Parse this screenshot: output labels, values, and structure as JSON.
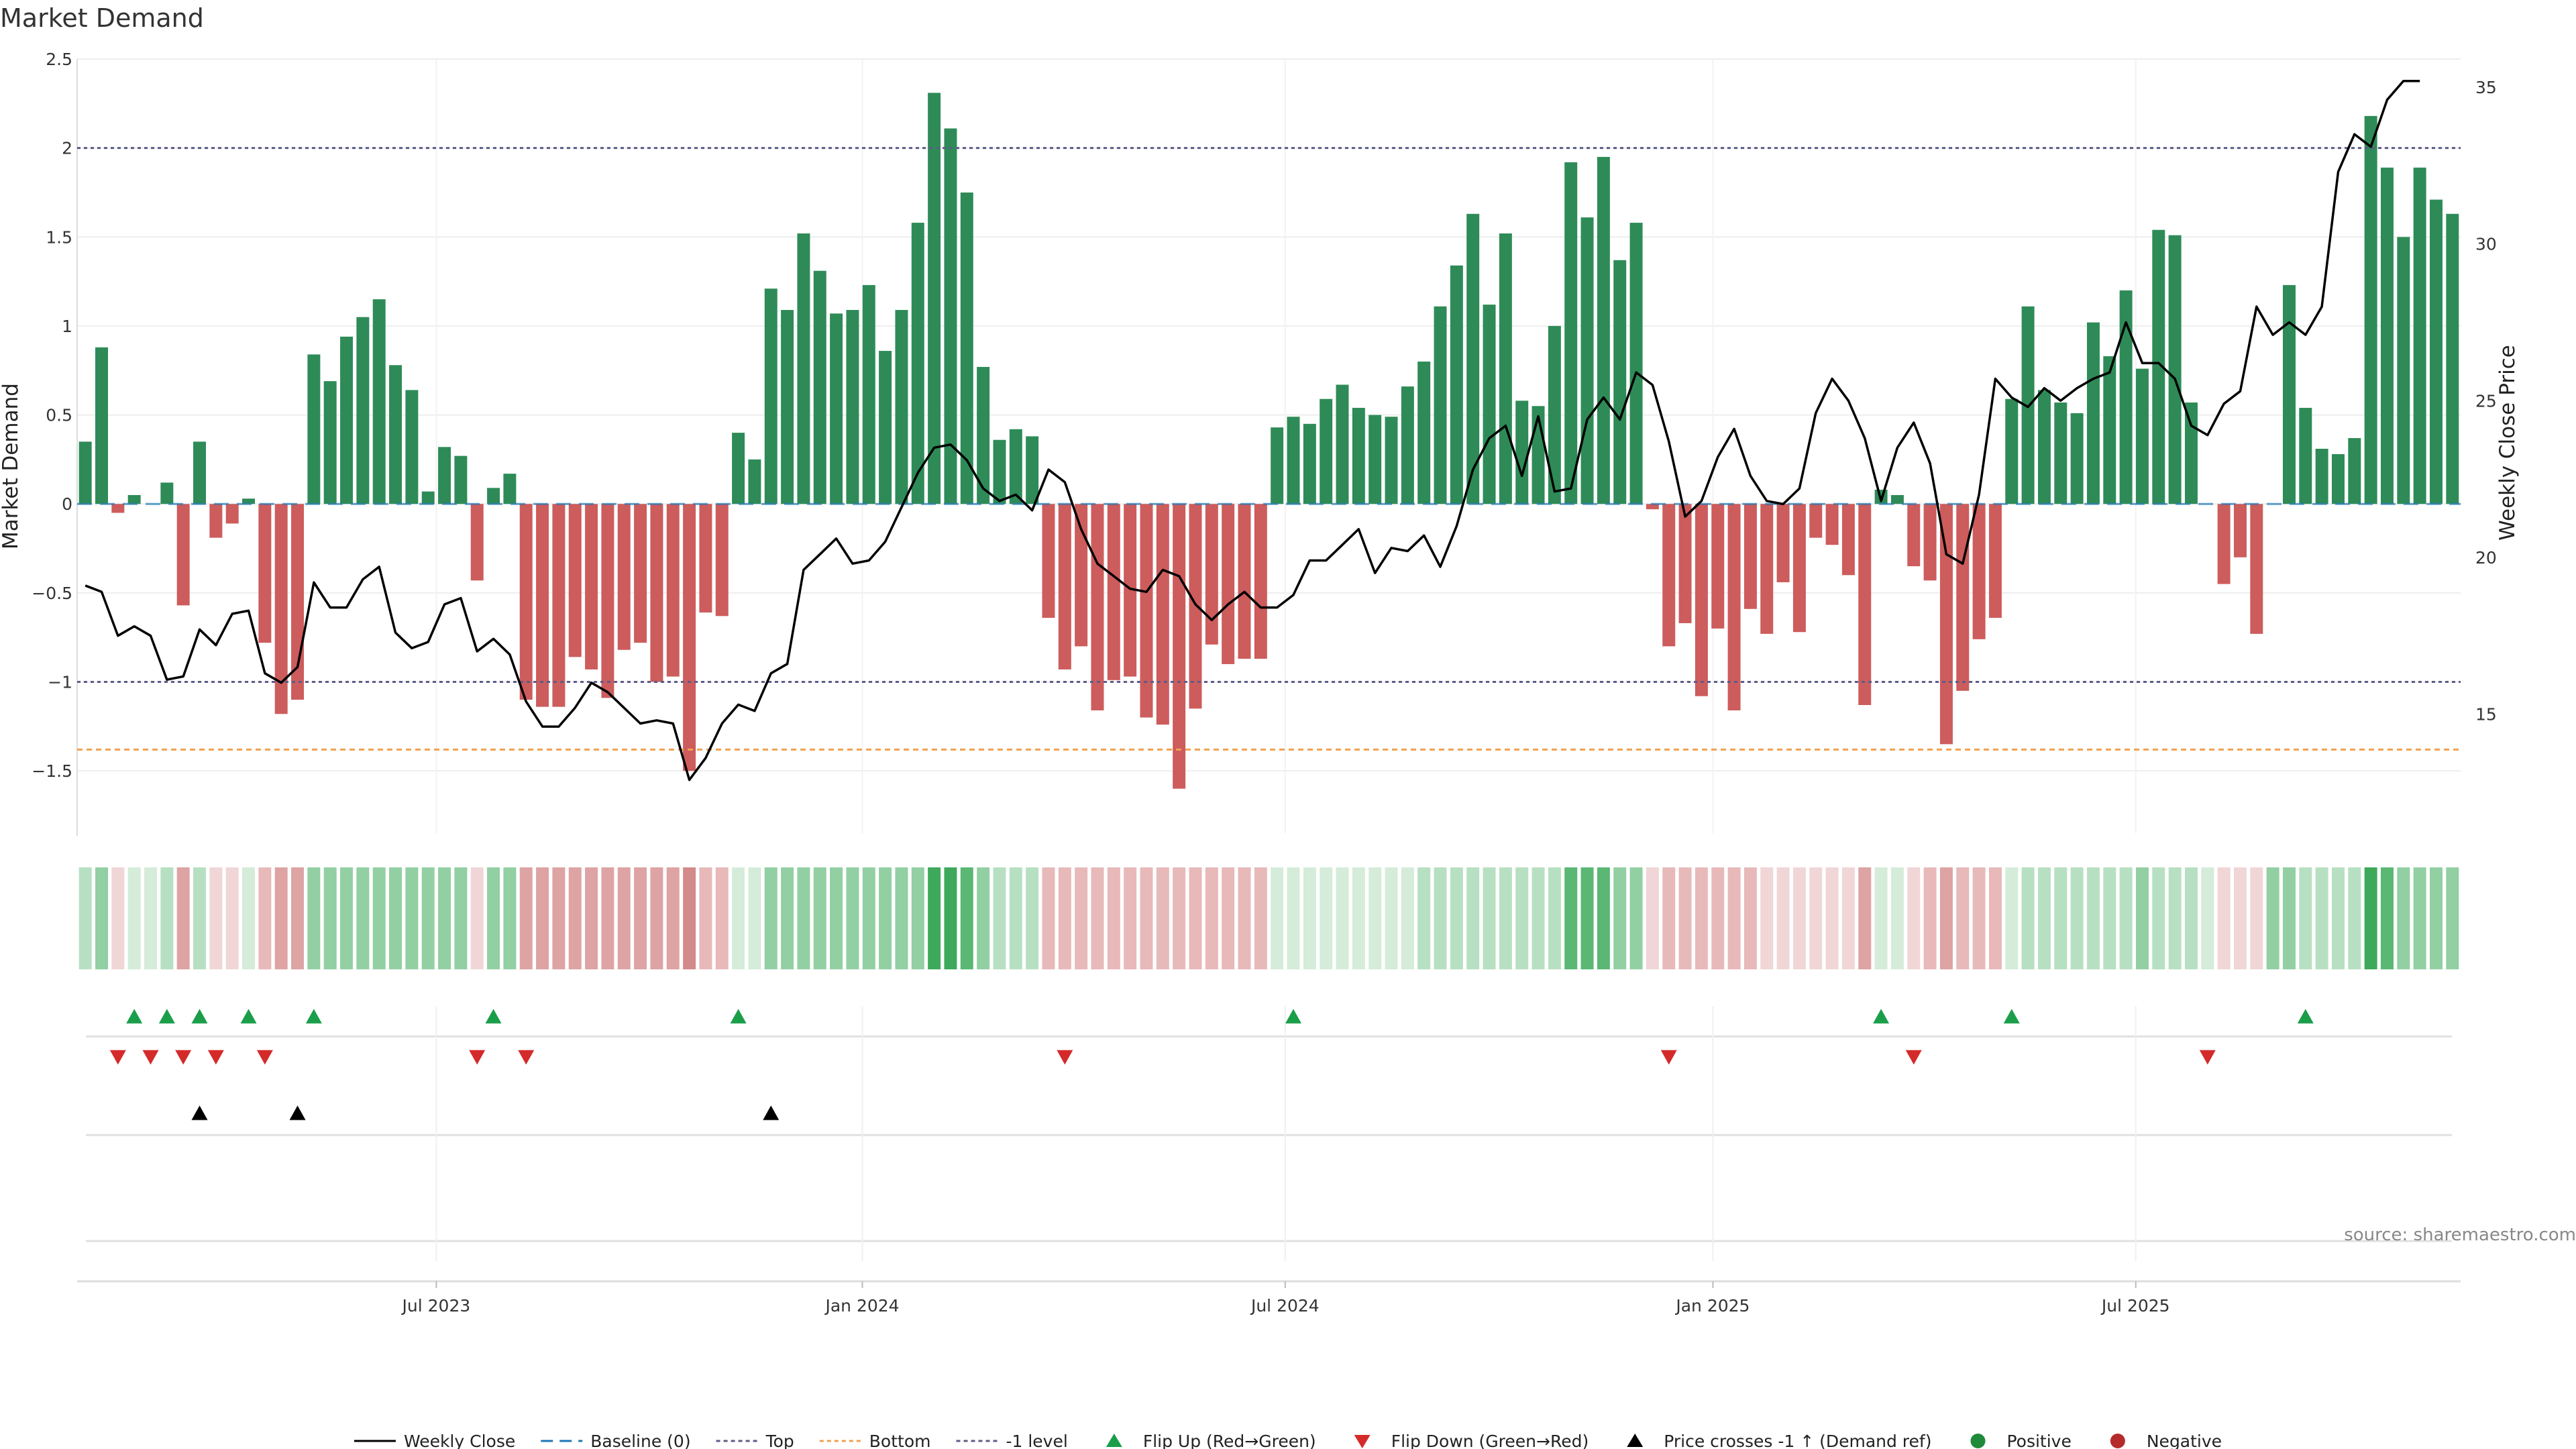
{
  "chart_data": {
    "type": "bar",
    "title": "Market Demand",
    "ylabel_left": "Market Demand",
    "ylabel_right": "Weekly Close Price",
    "ylim_left": [
      -1.85,
      2.5
    ],
    "ylim_right": [
      11.2,
      35.9
    ],
    "yticks_left": [
      {
        "value": 2.5,
        "label": "2.5"
      },
      {
        "value": 2,
        "label": "2"
      },
      {
        "value": 1.5,
        "label": "1.5"
      },
      {
        "value": 1,
        "label": "1"
      },
      {
        "value": 0.5,
        "label": "0.5"
      },
      {
        "value": 0,
        "label": "0"
      },
      {
        "value": -0.5,
        "label": "−0.5"
      },
      {
        "value": -1,
        "label": "−1"
      },
      {
        "value": -1.5,
        "label": "−1.5"
      }
    ],
    "yticks_right": [
      {
        "value": 35,
        "label": "35"
      },
      {
        "value": 30,
        "label": "30"
      },
      {
        "value": 25,
        "label": "25"
      },
      {
        "value": 20,
        "label": "20"
      },
      {
        "value": 15,
        "label": "15"
      }
    ],
    "xticks": [
      {
        "index": 21.5,
        "label": "Jul 2023"
      },
      {
        "index": 47.6,
        "label": "Jan 2024"
      },
      {
        "index": 73.5,
        "label": "Jul 2024"
      },
      {
        "index": 99.7,
        "label": "Jan 2025"
      },
      {
        "index": 125.6,
        "label": "Jul 2025"
      }
    ],
    "reference_lines": {
      "top": 2,
      "bottom": -1.38,
      "minus_one": -1,
      "baseline": 0
    },
    "demand": [
      0.35,
      0.88,
      -0.05,
      0.05,
      0,
      0.12,
      -0.57,
      0.35,
      -0.19,
      -0.11,
      0.03,
      -0.78,
      -1.18,
      -1.1,
      0.84,
      0.69,
      0.94,
      1.05,
      1.15,
      0.78,
      0.64,
      0.07,
      0.32,
      0.27,
      -0.43,
      0.09,
      0.17,
      -1.1,
      -1.14,
      -1.14,
      -0.86,
      -0.93,
      -1.09,
      -0.82,
      -0.78,
      -1.0,
      -0.97,
      -1.5,
      -0.61,
      -0.63,
      0.4,
      0.25,
      1.21,
      1.09,
      1.52,
      1.31,
      1.07,
      1.09,
      1.23,
      0.86,
      1.09,
      1.58,
      2.31,
      2.11,
      1.75,
      0.77,
      0.36,
      0.42,
      0.38,
      -0.64,
      -0.93,
      -0.8,
      -1.16,
      -0.99,
      -0.97,
      -1.2,
      -1.24,
      -1.6,
      -1.15,
      -0.79,
      -0.9,
      -0.87,
      -0.87,
      0.43,
      0.49,
      0.45,
      0.59,
      0.67,
      0.54,
      0.5,
      0.49,
      0.66,
      0.8,
      1.11,
      1.34,
      1.63,
      1.12,
      1.52,
      0.58,
      0.55,
      1.0,
      1.92,
      1.61,
      1.95,
      1.37,
      1.58,
      -0.03,
      -0.8,
      -0.67,
      -1.08,
      -0.7,
      -1.16,
      -0.59,
      -0.73,
      -0.44,
      -0.72,
      -0.19,
      -0.23,
      -0.4,
      -1.13,
      0.08,
      0.05,
      -0.35,
      -0.43,
      -1.35,
      -1.05,
      -0.76,
      -0.64,
      0.59,
      1.11,
      0.64,
      0.57,
      0.51,
      1.02,
      0.83,
      1.2,
      0.76,
      1.54,
      1.51,
      0.57,
      0,
      -0.45,
      -0.3,
      -0.73,
      0,
      1.23,
      0.54,
      0.31,
      0.28,
      0.37,
      2.18,
      1.89,
      1.5,
      1.89,
      1.71,
      1.63
    ],
    "weekly_close": [
      19.1,
      18.9,
      17.5,
      17.8,
      17.5,
      16.1,
      16.2,
      17.7,
      17.2,
      18.2,
      18.3,
      16.3,
      16.0,
      16.5,
      19.2,
      18.4,
      18.4,
      19.3,
      19.7,
      17.6,
      17.1,
      17.3,
      18.5,
      18.7,
      17.0,
      17.4,
      16.9,
      15.4,
      14.6,
      14.6,
      15.2,
      16.0,
      15.7,
      15.2,
      14.7,
      14.8,
      14.7,
      12.9,
      13.6,
      14.7,
      15.3,
      15.1,
      16.3,
      16.6,
      19.6,
      20.1,
      20.6,
      19.8,
      19.9,
      20.5,
      21.6,
      22.7,
      23.5,
      23.6,
      23.1,
      22.2,
      21.8,
      22.0,
      21.5,
      22.8,
      22.4,
      20.9,
      19.8,
      19.4,
      19.0,
      18.9,
      19.6,
      19.4,
      18.5,
      18.0,
      18.5,
      18.9,
      18.4,
      18.4,
      18.8,
      19.9,
      19.9,
      20.4,
      20.9,
      19.5,
      20.3,
      20.2,
      20.7,
      19.7,
      21.0,
      22.8,
      23.8,
      24.2,
      22.6,
      24.5,
      22.1,
      22.2,
      24.4,
      25.1,
      24.4,
      25.9,
      25.5,
      23.7,
      21.3,
      21.8,
      23.2,
      24.1,
      22.6,
      21.8,
      21.7,
      22.2,
      24.6,
      25.7,
      25.0,
      23.8,
      21.8,
      23.5,
      24.3,
      23.0,
      20.1,
      19.8,
      22.0,
      25.7,
      25.1,
      24.8,
      25.4,
      25.0,
      25.4,
      25.7,
      25.9,
      27.5,
      26.2,
      26.2,
      25.7,
      24.2,
      23.9,
      24.9,
      25.3,
      28.0,
      27.1,
      27.5,
      27.1,
      28.0,
      32.3,
      33.5,
      33.1,
      34.6,
      35.2,
      35.2
    ],
    "heatstrip_intensity": [
      2,
      3,
      1,
      1,
      1,
      2,
      3,
      2,
      1,
      1,
      1,
      2,
      3,
      3,
      3,
      3,
      3,
      3,
      3,
      3,
      3,
      3,
      3,
      3,
      1,
      3,
      3,
      3,
      3,
      3,
      3,
      3,
      3,
      3,
      3,
      3,
      3,
      4,
      2,
      2,
      1,
      1,
      3,
      3,
      3,
      3,
      3,
      3,
      3,
      3,
      3,
      3,
      4,
      4,
      4,
      3,
      2,
      2,
      2,
      2,
      2,
      2,
      2,
      2,
      2,
      2,
      2,
      2,
      2,
      2,
      2,
      2,
      2,
      1,
      1,
      1,
      1,
      1,
      1,
      1,
      1,
      1,
      2,
      2,
      2,
      2,
      2,
      2,
      2,
      2,
      2,
      4,
      4,
      4,
      3,
      3,
      1,
      2,
      2,
      2,
      2,
      2,
      2,
      1,
      1,
      1,
      1,
      1,
      1,
      3,
      1,
      1,
      1,
      2,
      3,
      2,
      2,
      2,
      1,
      2,
      2,
      2,
      2,
      2,
      2,
      2,
      3,
      2,
      2,
      2,
      1,
      1,
      1,
      1,
      3,
      3,
      2,
      2,
      2,
      2,
      4,
      4,
      3,
      3,
      3,
      3
    ],
    "flip_up_idx": [
      3,
      5,
      7,
      10,
      14,
      25,
      40,
      74,
      110,
      118,
      136
    ],
    "flip_down_idx": [
      2,
      4,
      6,
      8,
      11,
      24,
      27,
      60,
      97,
      112,
      130
    ],
    "price_cross_idx": [
      7,
      13,
      42
    ],
    "source": "source: sharemaestro.com",
    "legend": [
      {
        "type": "line",
        "color": "#000000",
        "style": "solid",
        "label": "Weekly Close"
      },
      {
        "type": "line",
        "color": "#1f77b4",
        "style": "dashed",
        "label": "Baseline (0)"
      },
      {
        "type": "line",
        "color": "#5c5c8a",
        "style": "dotted",
        "label": "Top"
      },
      {
        "type": "line",
        "color": "#f0a050",
        "style": "dotted",
        "label": "Bottom"
      },
      {
        "type": "line",
        "color": "#5c5c8a",
        "style": "dotted",
        "label": "-1 level"
      },
      {
        "type": "tri-up",
        "color": "#1a9e4a",
        "label": "Flip Up (Red→Green)"
      },
      {
        "type": "tri-down",
        "color": "#d42a2a",
        "label": "Flip Down (Green→Red)"
      },
      {
        "type": "tri-up",
        "color": "#000000",
        "label": "Price crosses -1 ↑ (Demand ref)"
      },
      {
        "type": "dot",
        "color": "#1e8a3a",
        "label": "Positive"
      },
      {
        "type": "dot",
        "color": "#b52a2a",
        "label": "Negative"
      }
    ],
    "colors": {
      "positive_bar": "#2e8b57",
      "negative_bar": "#cd5c5c",
      "price_line": "#000000",
      "top_line": "#5c5c8a",
      "bottom_line": "#f0a050",
      "minus_one_line": "#5c5c8a",
      "grid": "#eeeeee"
    }
  }
}
